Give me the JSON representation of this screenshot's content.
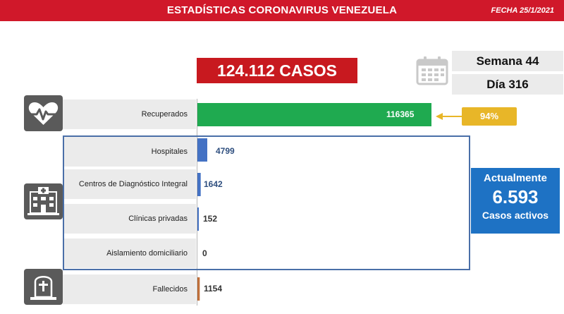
{
  "header": {
    "title": "ESTADÍSTICAS CORONAVIRUS VENEZUELA",
    "date": "FECHA 25/1/2021"
  },
  "total_cases": "124.112 CASOS",
  "week": "Semana 44",
  "day": "Día 316",
  "recovered_pct": "94%",
  "active": {
    "title": "Actualmente",
    "value": "6.593",
    "subtitle": "Casos activos"
  },
  "icons": {
    "calendar": "calendar-icon",
    "recovered": "heartbeat-icon",
    "hospital": "hospital-icon",
    "deceased": "tombstone-icon"
  },
  "colors": {
    "header": "#d0182a",
    "total_box": "#c8191f",
    "recovered_bar": "#1faa50",
    "hospital_bars": "#4472c4",
    "deceased_bar": "#c0703a",
    "pct_badge": "#e8b628",
    "active_box": "#1e72c4",
    "group_border": "#4a6fa8"
  },
  "chart_data": {
    "type": "bar",
    "orientation": "horizontal",
    "categories": [
      "Recuperados",
      "Hospitales",
      "Centros de Diagnóstico Integral",
      "Clínicas privadas",
      "Aislamiento domiciliario",
      "Fallecidos"
    ],
    "values": [
      116365,
      4799,
      1642,
      152,
      0,
      1154
    ],
    "value_labels": [
      "116365",
      "4799",
      "1642",
      "152",
      "0",
      "1154"
    ],
    "bar_colors": [
      "#1faa50",
      "#4472c4",
      "#4472c4",
      "#4472c4",
      "#4472c4",
      "#c0703a"
    ],
    "xlim": [
      0,
      116365
    ],
    "grid": false
  }
}
